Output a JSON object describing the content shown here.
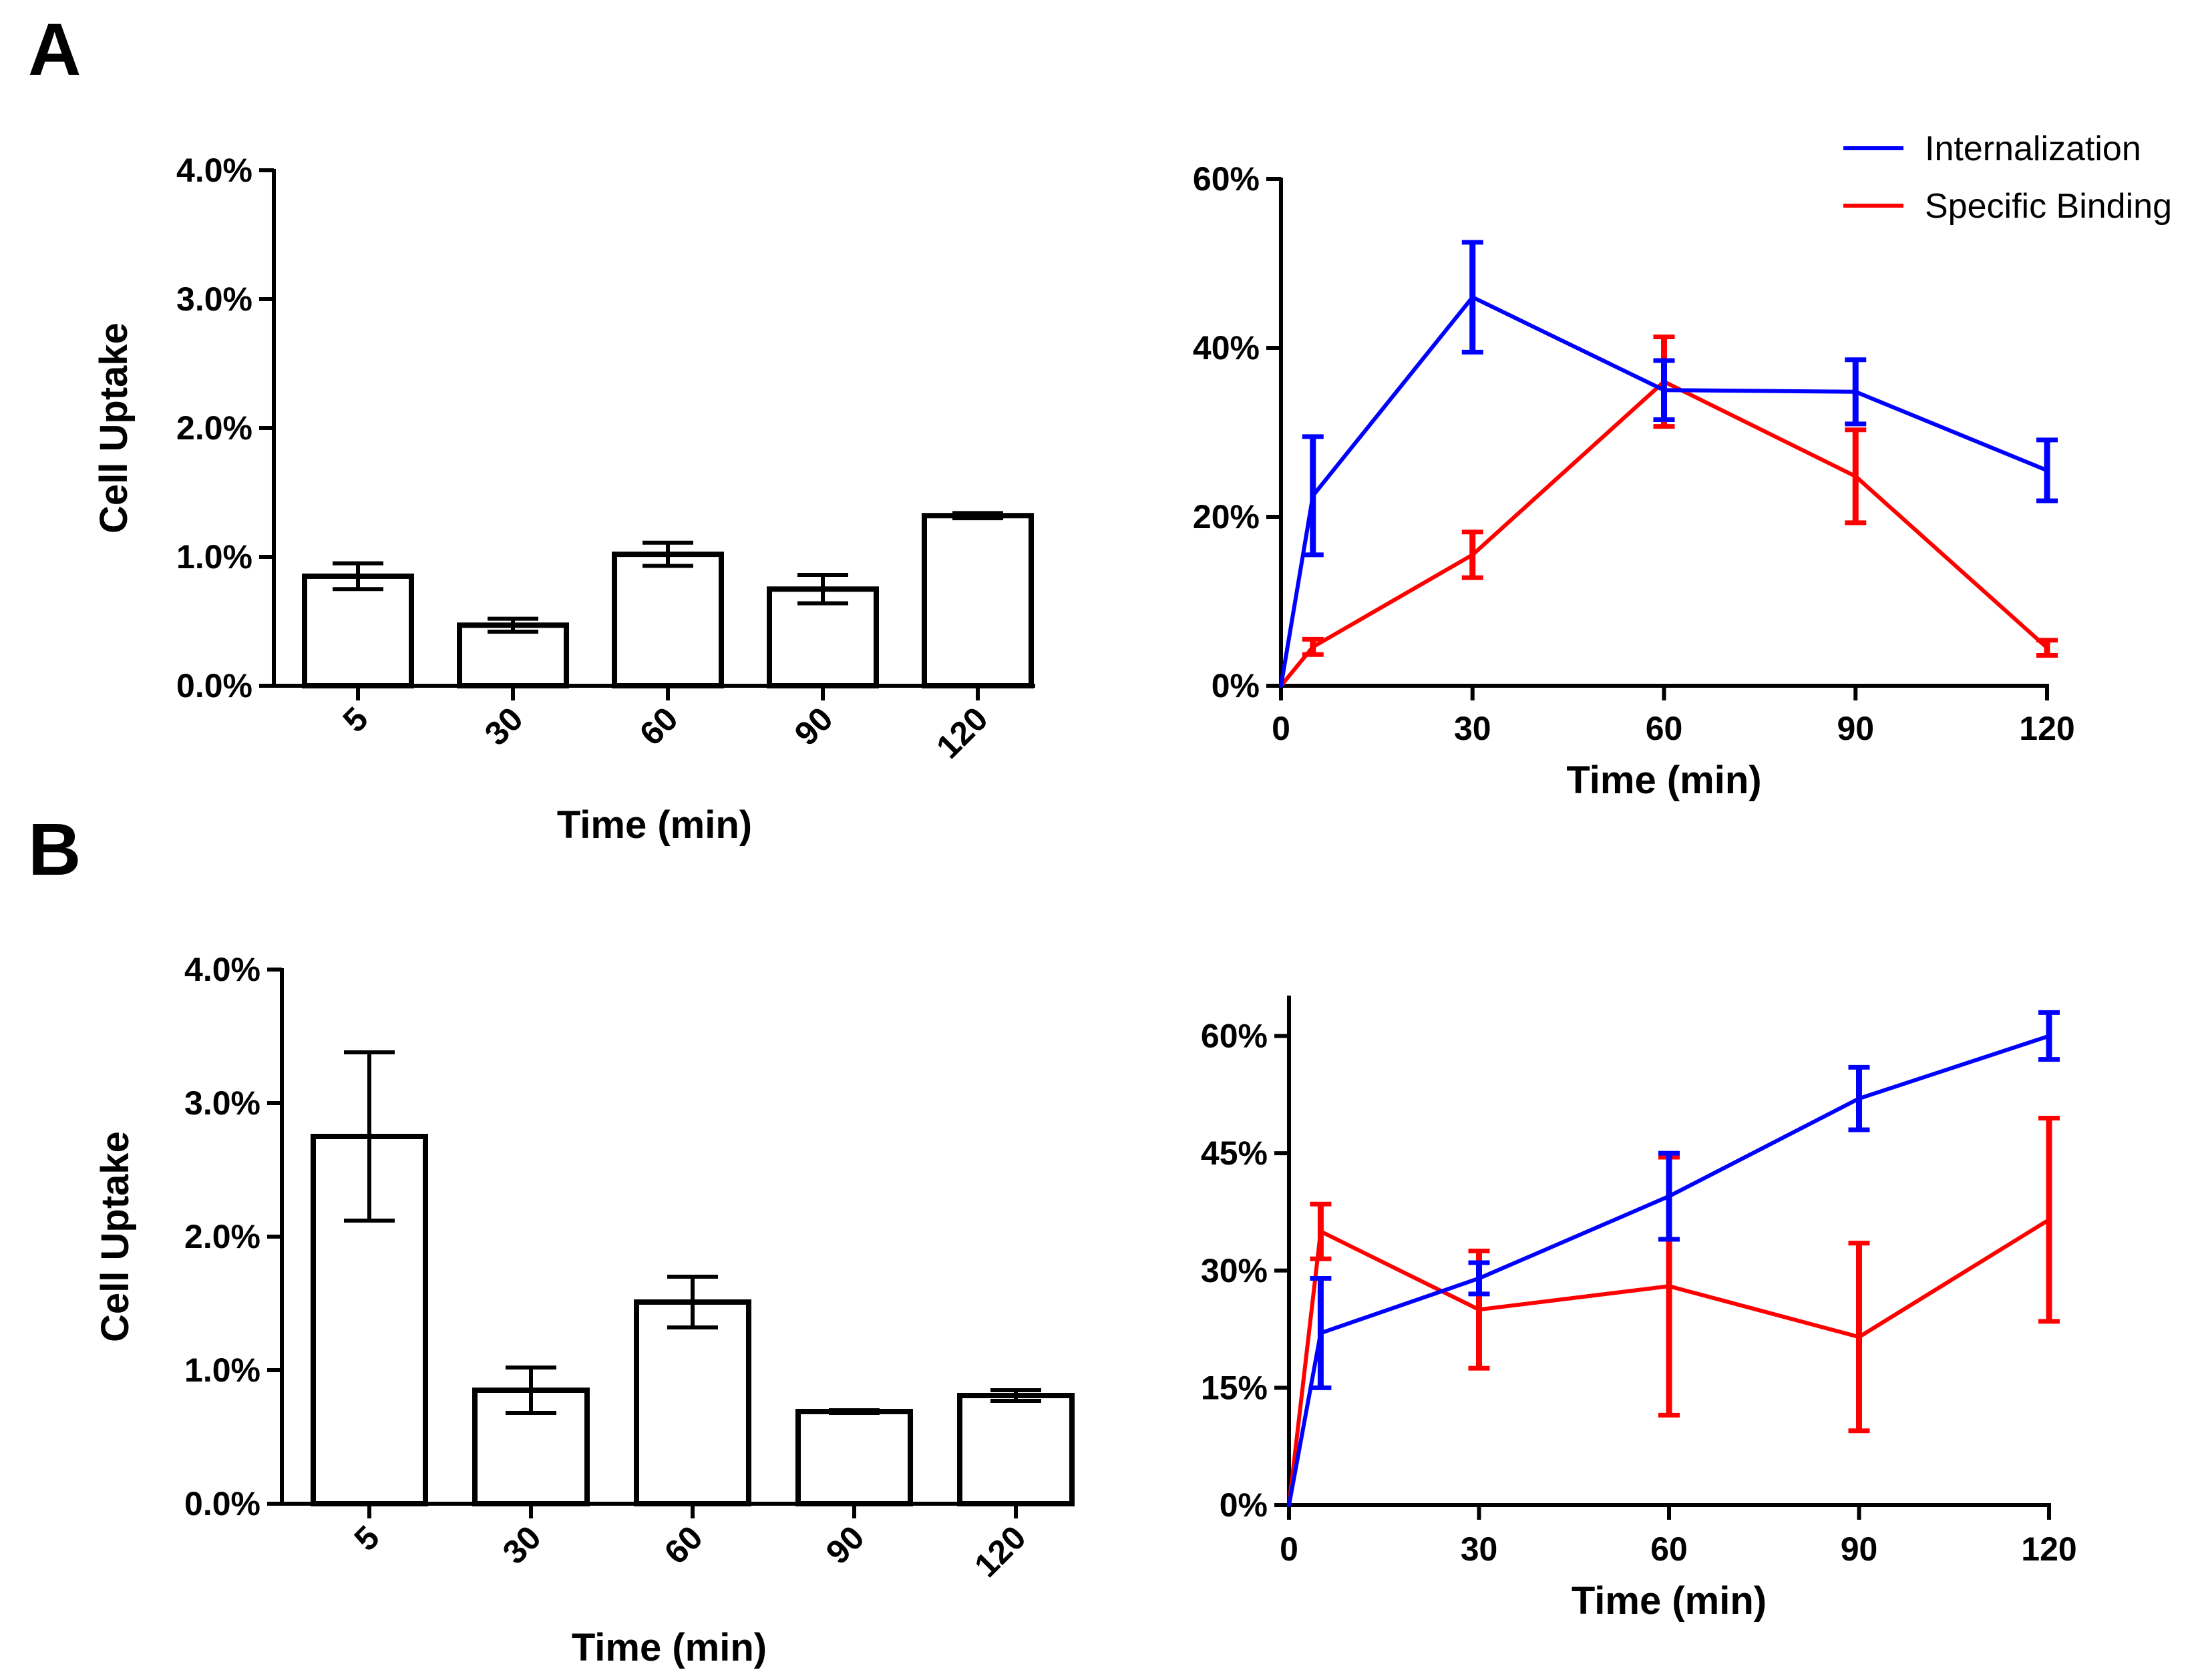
{
  "panels": [
    {
      "id": "A",
      "label": "A"
    },
    {
      "id": "B",
      "label": "B"
    }
  ],
  "legend": {
    "items": [
      {
        "label": "Internalization",
        "color": "#0000ff"
      },
      {
        "label": "Specific Binding",
        "color": "#ff0000"
      }
    ]
  },
  "chart_data": [
    {
      "id": "A-bar",
      "panel": "A",
      "type": "bar",
      "title": "",
      "xlabel": "Time (min)",
      "ylabel": "Cell Uptake",
      "categories": [
        "5",
        "30",
        "60",
        "90",
        "120"
      ],
      "values": [
        0.85,
        0.47,
        1.02,
        0.75,
        1.32
      ],
      "errors": [
        0.1,
        0.05,
        0.09,
        0.11,
        0.02
      ],
      "ylim": [
        0,
        4.0
      ],
      "yticks": [
        0,
        1.0,
        2.0,
        3.0,
        4.0
      ],
      "ytick_labels": [
        "0.0%",
        "1.0%",
        "2.0%",
        "3.0%",
        "4.0%"
      ]
    },
    {
      "id": "A-line",
      "panel": "A",
      "type": "line",
      "title": "",
      "xlabel": "Time (min)",
      "ylabel": "",
      "xlim": [
        0,
        120
      ],
      "ylim": [
        0,
        60
      ],
      "xticks": [
        0,
        30,
        60,
        90,
        120
      ],
      "yticks": [
        0,
        20,
        40,
        60
      ],
      "ytick_labels": [
        "0%",
        "20%",
        "40%",
        "60%"
      ],
      "series": [
        {
          "name": "Internalization",
          "color": "#0000ff",
          "x": [
            0,
            5,
            30,
            60,
            90,
            120
          ],
          "y": [
            0,
            22.5,
            46,
            35,
            34.8,
            25.5
          ],
          "err": [
            0,
            7,
            6.5,
            3.5,
            3.8,
            3.6
          ]
        },
        {
          "name": "Specific Binding",
          "color": "#ff0000",
          "x": [
            0,
            5,
            30,
            60,
            90,
            120
          ],
          "y": [
            0,
            4.6,
            15.5,
            36,
            24.8,
            4.5
          ],
          "err": [
            0,
            0.9,
            2.7,
            5.3,
            5.5,
            0.9
          ]
        }
      ]
    },
    {
      "id": "B-bar",
      "panel": "B",
      "type": "bar",
      "title": "",
      "xlabel": "Time (min)",
      "ylabel": "Cell Uptake",
      "categories": [
        "5",
        "30",
        "60",
        "90",
        "120"
      ],
      "values": [
        2.75,
        0.85,
        1.51,
        0.69,
        0.81
      ],
      "errors": [
        0.63,
        0.17,
        0.19,
        0.01,
        0.04
      ],
      "ylim": [
        0,
        4.0
      ],
      "yticks": [
        0,
        1.0,
        2.0,
        3.0,
        4.0
      ],
      "ytick_labels": [
        "0.0%",
        "1.0%",
        "2.0%",
        "3.0%",
        "4.0%"
      ]
    },
    {
      "id": "B-line",
      "panel": "B",
      "type": "line",
      "title": "",
      "xlabel": "Time (min)",
      "ylabel": "",
      "xlim": [
        0,
        120
      ],
      "ylim": [
        0,
        65
      ],
      "xticks": [
        0,
        30,
        60,
        90,
        120
      ],
      "yticks": [
        0,
        15,
        30,
        45,
        60
      ],
      "ytick_labels": [
        "0%",
        "15%",
        "30%",
        "45%",
        "60%"
      ],
      "series": [
        {
          "name": "Internalization",
          "color": "#0000ff",
          "x": [
            0,
            5,
            30,
            60,
            90,
            120
          ],
          "y": [
            0,
            22,
            29,
            39.5,
            52,
            60
          ],
          "err": [
            0,
            7,
            2,
            5.5,
            4,
            3
          ]
        },
        {
          "name": "Specific Binding",
          "color": "#ff0000",
          "x": [
            0,
            5,
            30,
            60,
            90,
            120
          ],
          "y": [
            0,
            35,
            25,
            28,
            21.5,
            36.5
          ],
          "err": [
            0,
            3.5,
            7.5,
            16.5,
            12,
            13
          ]
        }
      ]
    }
  ]
}
